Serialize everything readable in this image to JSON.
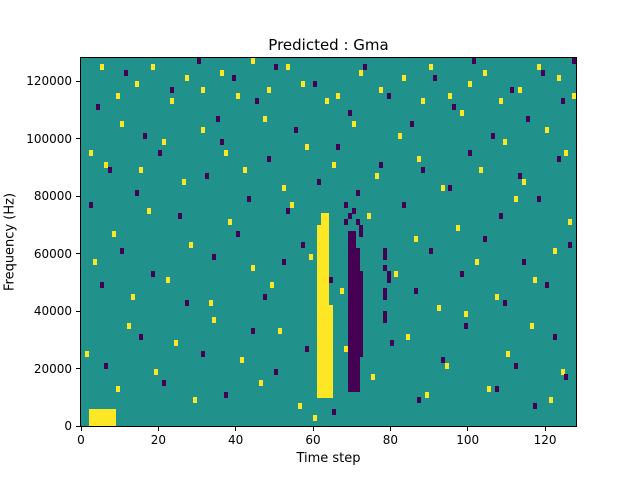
{
  "chart_data": {
    "type": "heatmap",
    "title": "Predicted : Gma",
    "xlabel": "Time step",
    "ylabel": "Frequency (Hz)",
    "xlim": [
      0,
      128
    ],
    "ylim": [
      0,
      128000
    ],
    "grid": {
      "cols": 128,
      "rows": 64,
      "hz_per_row": 2000
    },
    "legend": "none",
    "colors": {
      "background": "#21918c",
      "yellow": "#fde725",
      "purple": "#440154"
    },
    "xticks": [
      {
        "value": 0,
        "label": "0"
      },
      {
        "value": 20,
        "label": "20"
      },
      {
        "value": 40,
        "label": "40"
      },
      {
        "value": 60,
        "label": "60"
      },
      {
        "value": 80,
        "label": "80"
      },
      {
        "value": 100,
        "label": "100"
      },
      {
        "value": 120,
        "label": "120"
      }
    ],
    "yticks": [
      {
        "value": 0,
        "label": "0"
      },
      {
        "value": 20000,
        "label": "20000"
      },
      {
        "value": 40000,
        "label": "40000"
      },
      {
        "value": 60000,
        "label": "60000"
      },
      {
        "value": 80000,
        "label": "80000"
      },
      {
        "value": 100000,
        "label": "100000"
      },
      {
        "value": 120000,
        "label": "120000"
      }
    ],
    "regions": [
      {
        "color": "yellow",
        "x": [
          2,
          8
        ],
        "bins": [
          0,
          2
        ]
      },
      {
        "color": "yellow",
        "x": [
          61,
          64
        ],
        "bins": [
          5,
          20
        ]
      },
      {
        "color": "yellow",
        "x": [
          61,
          63
        ],
        "bins": [
          20,
          34
        ]
      },
      {
        "color": "yellow",
        "x": [
          62,
          63
        ],
        "bins": [
          34,
          36
        ]
      },
      {
        "color": "purple",
        "x": [
          69,
          71
        ],
        "bins": [
          6,
          30
        ]
      },
      {
        "color": "purple",
        "x": [
          70,
          72
        ],
        "bins": [
          12,
          26
        ]
      },
      {
        "color": "purple",
        "x": [
          69,
          70
        ],
        "bins": [
          30,
          33
        ]
      }
    ],
    "points": {
      "yellow": [
        [
          5,
          62
        ],
        [
          9,
          57
        ],
        [
          14,
          59
        ],
        [
          18,
          62
        ],
        [
          23,
          56
        ],
        [
          27,
          60
        ],
        [
          31,
          58
        ],
        [
          36,
          61
        ],
        [
          40,
          57
        ],
        [
          44,
          63
        ],
        [
          48,
          58
        ],
        [
          53,
          62
        ],
        [
          57,
          59
        ],
        [
          63,
          56
        ],
        [
          66,
          57
        ],
        [
          72,
          61
        ],
        [
          77,
          58
        ],
        [
          83,
          60
        ],
        [
          88,
          56
        ],
        [
          90,
          62
        ],
        [
          95,
          57
        ],
        [
          100,
          59
        ],
        [
          104,
          61
        ],
        [
          108,
          56
        ],
        [
          113,
          58
        ],
        [
          118,
          62
        ],
        [
          123,
          60
        ],
        [
          127,
          57
        ],
        [
          2,
          47
        ],
        [
          6,
          45
        ],
        [
          10,
          52
        ],
        [
          15,
          44
        ],
        [
          21,
          49
        ],
        [
          26,
          42
        ],
        [
          31,
          51
        ],
        [
          37,
          47
        ],
        [
          42,
          44
        ],
        [
          47,
          53
        ],
        [
          52,
          41
        ],
        [
          58,
          48
        ],
        [
          65,
          45
        ],
        [
          70,
          52
        ],
        [
          76,
          43
        ],
        [
          82,
          50
        ],
        [
          87,
          46
        ],
        [
          93,
          41
        ],
        [
          98,
          54
        ],
        [
          103,
          44
        ],
        [
          109,
          49
        ],
        [
          114,
          42
        ],
        [
          120,
          51
        ],
        [
          125,
          47
        ],
        [
          3,
          28
        ],
        [
          8,
          33
        ],
        [
          13,
          22
        ],
        [
          17,
          37
        ],
        [
          22,
          25
        ],
        [
          28,
          31
        ],
        [
          33,
          21
        ],
        [
          38,
          35
        ],
        [
          44,
          27
        ],
        [
          49,
          24
        ],
        [
          54,
          38
        ],
        [
          59,
          29
        ],
        [
          67,
          23
        ],
        [
          74,
          36
        ],
        [
          81,
          26
        ],
        [
          86,
          32
        ],
        [
          92,
          20
        ],
        [
          97,
          34
        ],
        [
          102,
          28
        ],
        [
          107,
          22
        ],
        [
          112,
          39
        ],
        [
          117,
          25
        ],
        [
          122,
          30
        ],
        [
          126,
          35
        ],
        [
          1,
          12
        ],
        [
          9,
          6
        ],
        [
          12,
          17
        ],
        [
          19,
          9
        ],
        [
          24,
          14
        ],
        [
          29,
          4
        ],
        [
          34,
          18
        ],
        [
          41,
          11
        ],
        [
          46,
          7
        ],
        [
          51,
          16
        ],
        [
          56,
          3
        ],
        [
          60,
          1
        ],
        [
          68,
          13
        ],
        [
          75,
          8
        ],
        [
          84,
          15
        ],
        [
          89,
          5
        ],
        [
          94,
          10
        ],
        [
          99,
          19
        ],
        [
          105,
          6
        ],
        [
          110,
          12
        ],
        [
          116,
          17
        ],
        [
          121,
          4
        ],
        [
          124,
          9
        ]
      ],
      "purple": [
        [
          4,
          55
        ],
        [
          11,
          61
        ],
        [
          16,
          50
        ],
        [
          23,
          58
        ],
        [
          30,
          63
        ],
        [
          35,
          53
        ],
        [
          39,
          60
        ],
        [
          45,
          56
        ],
        [
          50,
          62
        ],
        [
          55,
          51
        ],
        [
          60,
          59
        ],
        [
          69,
          54
        ],
        [
          73,
          62
        ],
        [
          79,
          57
        ],
        [
          85,
          52
        ],
        [
          91,
          60
        ],
        [
          96,
          55
        ],
        [
          101,
          63
        ],
        [
          106,
          50
        ],
        [
          111,
          58
        ],
        [
          115,
          53
        ],
        [
          119,
          61
        ],
        [
          124,
          56
        ],
        [
          127,
          63
        ],
        [
          2,
          38
        ],
        [
          7,
          44
        ],
        [
          14,
          40
        ],
        [
          20,
          47
        ],
        [
          25,
          36
        ],
        [
          32,
          43
        ],
        [
          36,
          49
        ],
        [
          43,
          39
        ],
        [
          48,
          46
        ],
        [
          53,
          37
        ],
        [
          61,
          42
        ],
        [
          66,
          48
        ],
        [
          71,
          40
        ],
        [
          77,
          45
        ],
        [
          83,
          38
        ],
        [
          88,
          44
        ],
        [
          95,
          41
        ],
        [
          100,
          47
        ],
        [
          108,
          36
        ],
        [
          113,
          43
        ],
        [
          118,
          39
        ],
        [
          123,
          46
        ],
        [
          5,
          24
        ],
        [
          10,
          30
        ],
        [
          18,
          26
        ],
        [
          27,
          21
        ],
        [
          34,
          29
        ],
        [
          40,
          33
        ],
        [
          47,
          22
        ],
        [
          52,
          28
        ],
        [
          57,
          31
        ],
        [
          64,
          25
        ],
        [
          72,
          34
        ],
        [
          78,
          27
        ],
        [
          86,
          23
        ],
        [
          90,
          30
        ],
        [
          98,
          26
        ],
        [
          104,
          32
        ],
        [
          109,
          21
        ],
        [
          114,
          28
        ],
        [
          120,
          24
        ],
        [
          126,
          31
        ],
        [
          6,
          10
        ],
        [
          15,
          15
        ],
        [
          21,
          7
        ],
        [
          31,
          12
        ],
        [
          37,
          5
        ],
        [
          44,
          16
        ],
        [
          50,
          9
        ],
        [
          58,
          13
        ],
        [
          65,
          2
        ],
        [
          70,
          8
        ],
        [
          80,
          14
        ],
        [
          87,
          4
        ],
        [
          93,
          11
        ],
        [
          99,
          17
        ],
        [
          107,
          6
        ],
        [
          112,
          10
        ],
        [
          117,
          3
        ],
        [
          122,
          15
        ],
        [
          125,
          8
        ],
        [
          78,
          18
        ],
        [
          78,
          19
        ],
        [
          78,
          22
        ],
        [
          78,
          23
        ],
        [
          78,
          29
        ],
        [
          78,
          30
        ],
        [
          79,
          25
        ],
        [
          79,
          26
        ],
        [
          68,
          35
        ],
        [
          69,
          36
        ],
        [
          70,
          37
        ],
        [
          71,
          35
        ],
        [
          68,
          38
        ],
        [
          72,
          33
        ]
      ]
    }
  }
}
